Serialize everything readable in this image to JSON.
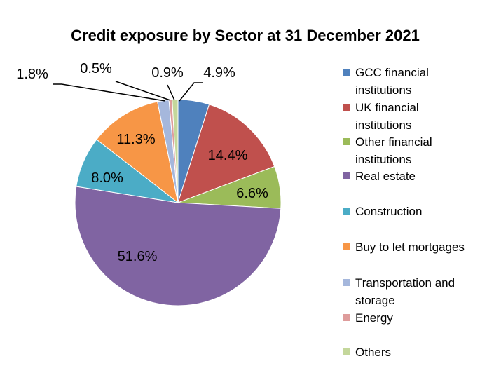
{
  "chart_data": {
    "type": "pie",
    "title": "Credit exposure by Sector at 31 December 2021",
    "categories": [
      "GCC financial institutions",
      "UK financial institutions",
      "Other financial institutions",
      "Real estate",
      "Construction",
      "Buy to let mortgages",
      "Transportation and storage",
      "Energy",
      "Others"
    ],
    "values": [
      4.9,
      14.4,
      6.6,
      51.6,
      8.0,
      11.3,
      1.8,
      0.5,
      0.9
    ],
    "labels": [
      "4.9%",
      "14.4%",
      "6.6%",
      "51.6%",
      "8.0%",
      "11.3%",
      "1.8%",
      "0.5%",
      "0.9%"
    ],
    "colors": [
      "#4f81bd",
      "#c0504d",
      "#9bbb59",
      "#8064a2",
      "#4bacc6",
      "#f79646",
      "#a5b7dc",
      "#de9c9b",
      "#c4d79b"
    ],
    "legend_position": "right"
  }
}
